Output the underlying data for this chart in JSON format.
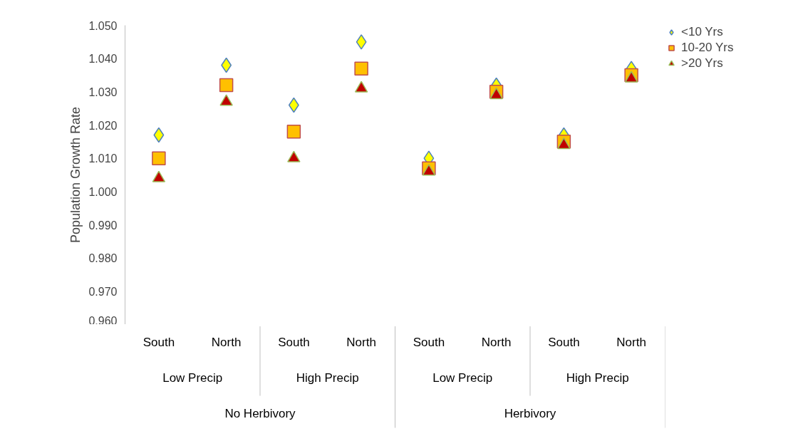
{
  "chart_data": {
    "type": "scatter",
    "ylabel": "Population Growth Rate",
    "categories": [
      "South",
      "North",
      "South",
      "North",
      "South",
      "North",
      "South",
      "North"
    ],
    "annotations": [
      "Low Precip",
      "High Precip",
      "Low Precip",
      "High Precip",
      "No Herbivory",
      "Herbivory"
    ],
    "series": [
      {
        "name": "<10 Yrs",
        "color": "#ffff00",
        "marker": "diamond",
        "values": [
          1.017,
          1.038,
          1.026,
          1.045,
          1.01,
          1.032,
          1.017,
          1.037
        ]
      },
      {
        "name": "10-20 Yrs",
        "color": "#ffc000",
        "marker": "square",
        "values": [
          1.01,
          1.032,
          1.018,
          1.037,
          1.007,
          1.03,
          1.015,
          1.035
        ]
      },
      {
        "name": ">20 Yrs",
        "color": "#c00000",
        "marker": "triangle",
        "values": [
          1.004,
          1.027,
          1.01,
          1.031,
          1.006,
          1.029,
          1.014,
          1.034
        ]
      }
    ],
    "ylim": [
      0.96,
      1.05
    ],
    "yticks": [
      {
        "value": 0.96,
        "label": "0.960"
      },
      {
        "value": 0.97,
        "label": "0.970"
      },
      {
        "value": 0.98,
        "label": "0.980"
      },
      {
        "value": 0.99,
        "label": "0.990"
      },
      {
        "value": 1.0,
        "label": "1.000"
      },
      {
        "value": 1.01,
        "label": "1.010"
      },
      {
        "value": 1.02,
        "label": "1.020"
      },
      {
        "value": 1.03,
        "label": "1.030"
      },
      {
        "value": 1.04,
        "label": "1.040"
      },
      {
        "value": 1.05,
        "label": "1.050"
      }
    ],
    "grid": false,
    "legend": "top right"
  }
}
